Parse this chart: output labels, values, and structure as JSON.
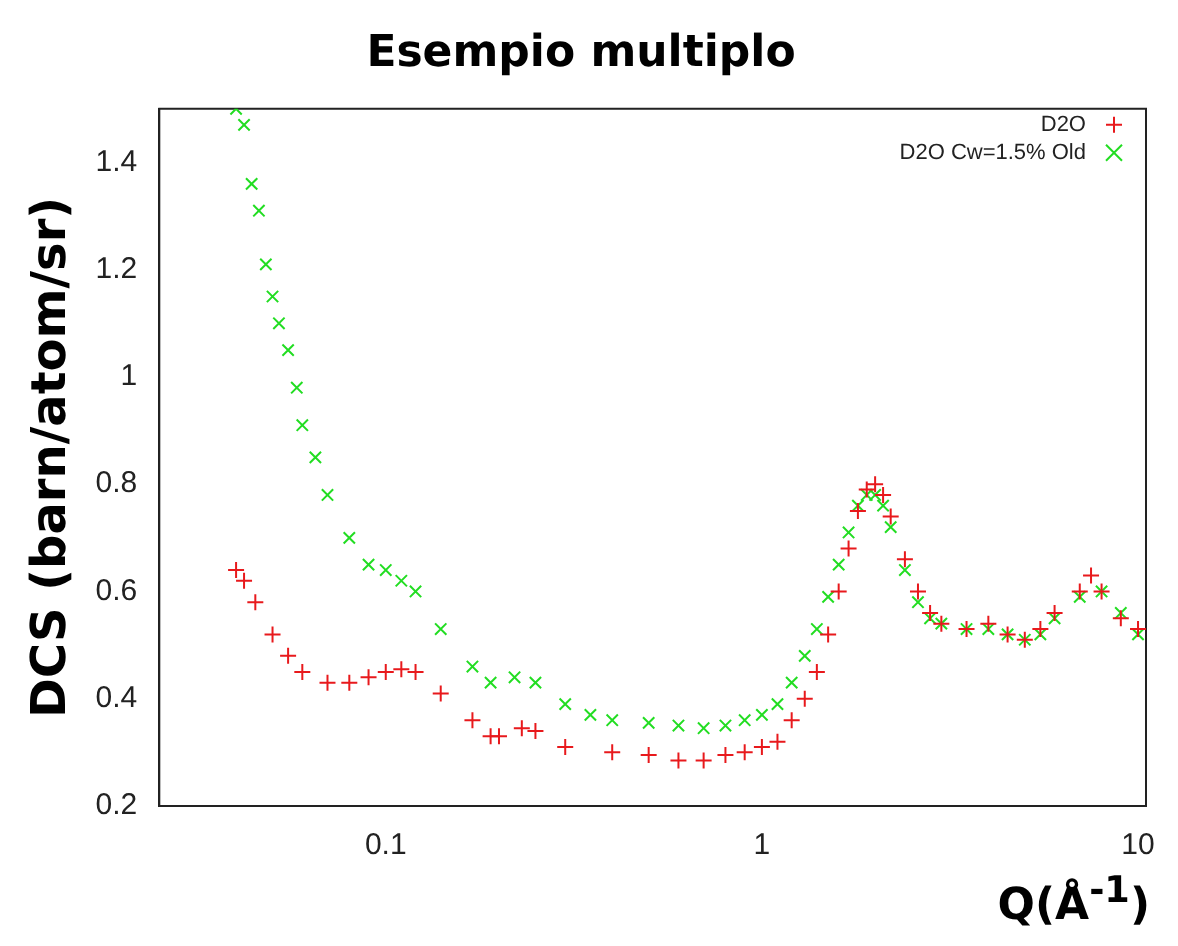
{
  "chart_data": {
    "type": "scatter",
    "title": "Esempio multiplo",
    "xlabel": "Q(Å$^{-1}$)",
    "ylabel": "DCS (barn/atom/sr)",
    "log": "x",
    "xlim": [
      0.025,
      10.5
    ],
    "xticks": [
      0.1,
      1,
      10
    ],
    "ylim": [
      0.2,
      1.5
    ],
    "yticks": [
      0.2,
      0.4,
      0.6,
      0.8,
      1,
      1.2,
      1.4
    ],
    "grid": false,
    "legend": "top right",
    "series": [
      {
        "name": "D2O",
        "color": "#e8191c",
        "marker": "cross",
        "x": [
          0.04,
          0.042,
          0.045,
          0.05,
          0.055,
          0.06,
          0.07,
          0.08,
          0.09,
          0.1,
          0.11,
          0.12,
          0.14,
          0.17,
          0.19,
          0.2,
          0.23,
          0.25,
          0.3,
          0.4,
          0.5,
          0.6,
          0.7,
          0.8,
          0.9,
          1.0,
          1.1,
          1.2,
          1.3,
          1.4,
          1.5,
          1.6,
          1.7,
          1.8,
          1.9,
          2.0,
          2.1,
          2.2,
          2.4,
          2.6,
          2.8,
          3,
          3.5,
          4,
          4.5,
          5,
          5.5,
          6,
          7,
          7.5,
          8,
          9,
          10
        ],
        "values": [
          0.64,
          0.62,
          0.58,
          0.52,
          0.48,
          0.45,
          0.43,
          0.43,
          0.44,
          0.45,
          0.455,
          0.45,
          0.41,
          0.36,
          0.33,
          0.33,
          0.345,
          0.34,
          0.31,
          0.3,
          0.295,
          0.285,
          0.285,
          0.295,
          0.3,
          0.31,
          0.32,
          0.36,
          0.4,
          0.45,
          0.52,
          0.6,
          0.68,
          0.75,
          0.79,
          0.8,
          0.78,
          0.74,
          0.66,
          0.6,
          0.56,
          0.54,
          0.53,
          0.54,
          0.52,
          0.51,
          0.53,
          0.56,
          0.6,
          0.63,
          0.6,
          0.55,
          0.53
        ]
      },
      {
        "name": "D2O Cw=1.5% Old",
        "color": "#22dd22",
        "marker": "x",
        "x": [
          0.04,
          0.042,
          0.044,
          0.046,
          0.048,
          0.05,
          0.052,
          0.055,
          0.058,
          0.06,
          0.065,
          0.07,
          0.08,
          0.09,
          0.1,
          0.11,
          0.12,
          0.14,
          0.17,
          0.19,
          0.22,
          0.25,
          0.3,
          0.35,
          0.4,
          0.5,
          0.6,
          0.7,
          0.8,
          0.9,
          1.0,
          1.1,
          1.2,
          1.3,
          1.4,
          1.5,
          1.6,
          1.7,
          1.8,
          1.9,
          2.0,
          2.1,
          2.2,
          2.4,
          2.6,
          2.8,
          3,
          3.5,
          4,
          4.5,
          5,
          5.5,
          6,
          7,
          8,
          9,
          10
        ],
        "values": [
          1.5,
          1.47,
          1.36,
          1.31,
          1.21,
          1.15,
          1.1,
          1.05,
          0.98,
          0.91,
          0.85,
          0.78,
          0.7,
          0.65,
          0.64,
          0.62,
          0.6,
          0.53,
          0.46,
          0.43,
          0.44,
          0.43,
          0.39,
          0.37,
          0.36,
          0.355,
          0.35,
          0.345,
          0.35,
          0.36,
          0.37,
          0.39,
          0.43,
          0.48,
          0.53,
          0.59,
          0.65,
          0.71,
          0.76,
          0.78,
          0.78,
          0.76,
          0.72,
          0.64,
          0.58,
          0.55,
          0.54,
          0.53,
          0.53,
          0.52,
          0.51,
          0.52,
          0.55,
          0.59,
          0.6,
          0.56,
          0.52
        ]
      }
    ]
  }
}
